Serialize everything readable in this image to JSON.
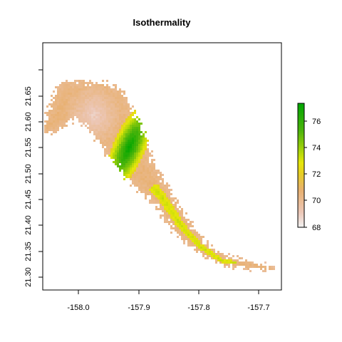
{
  "chart_data": {
    "type": "heatmap",
    "title": "Isothermality",
    "xlabel": "",
    "ylabel": "",
    "x_ticks": [
      "-158.0",
      "-157.9",
      "-157.8",
      "-157.7"
    ],
    "y_ticks": [
      "21.30",
      "21.35",
      "21.40",
      "21.45",
      "21.50",
      "21.55",
      "21.60",
      "21.65"
    ],
    "xlim": [
      -158.07,
      -157.67
    ],
    "ylim": [
      21.29,
      21.67
    ],
    "legend": {
      "placement": "right",
      "range": [
        68,
        77
      ],
      "ticks": [
        "68",
        "70",
        "72",
        "74",
        "76"
      ]
    },
    "colors": {
      "low": "#f2d8d3",
      "mid": "#e9b36a",
      "yellow": "#e6e20a",
      "high": "#1f9b0c"
    }
  }
}
